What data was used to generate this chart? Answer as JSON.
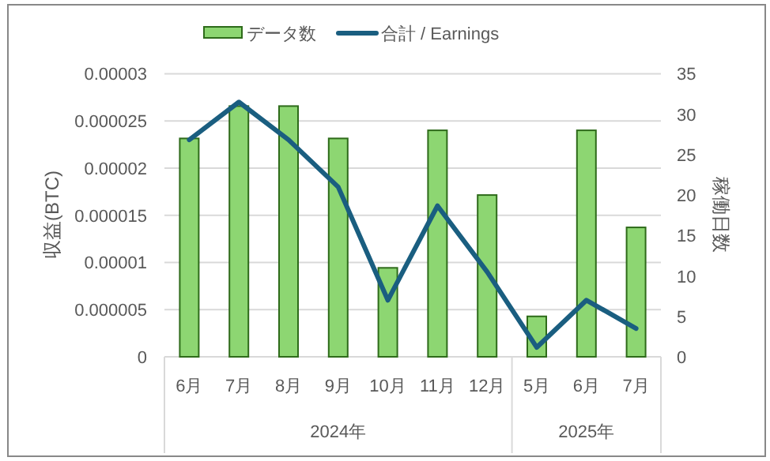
{
  "chart_data": {
    "type": "bar",
    "ylabel": "収益(BTC)",
    "y2label": "稼働日数",
    "categories": [
      "6月",
      "7月",
      "8月",
      "9月",
      "10月",
      "11月",
      "12月",
      "5月",
      "6月",
      "7月"
    ],
    "annotations": [
      "2024年",
      "2025年"
    ],
    "series": [
      {
        "name": "データ数",
        "axis": "y2",
        "color": "#8dd672",
        "values": [
          27,
          31,
          31,
          27,
          11,
          28,
          20,
          5,
          28,
          16
        ]
      },
      {
        "name": "合計 / Earnings",
        "type": "line",
        "axis": "y",
        "color": "#1a5e80",
        "values": [
          2.3e-05,
          2.7e-05,
          2.3e-05,
          1.8e-05,
          6e-06,
          1.6e-05,
          9e-06,
          1e-06,
          6e-06,
          3e-06
        ]
      }
    ],
    "ylim": [
      0,
      3e-05
    ],
    "yticks": [
      0,
      {
        "value": 5e-06,
        "label": "0.000005"
      },
      {
        "value": 1e-05,
        "label": "0.00001"
      },
      {
        "value": 1.5e-05,
        "label": "0.000015"
      },
      {
        "value": 2e-05,
        "label": "0.00002"
      },
      {
        "value": 2.5e-05,
        "label": "0.000025"
      },
      {
        "value": 3e-05,
        "label": "0.00003"
      }
    ],
    "y2lim": [
      0,
      35
    ],
    "y2ticks": [
      0,
      5,
      10,
      15,
      20,
      25,
      30,
      35
    ],
    "grid": "y",
    "legend": "top"
  }
}
